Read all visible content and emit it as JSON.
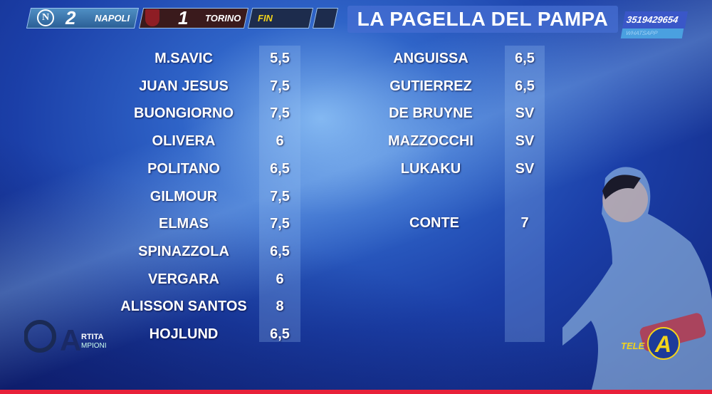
{
  "scoreboard": {
    "home_team": "NAPOLI",
    "home_score": "2",
    "away_team": "TORINO",
    "away_score": "1",
    "status": "FIN"
  },
  "title": "LA PAGELLA DEL PAMPA",
  "contact": {
    "phone": "3519429654",
    "label": "WHATSAPP"
  },
  "left_ratings": [
    {
      "name": "M.SAVIC",
      "score": "5,5"
    },
    {
      "name": "JUAN JESUS",
      "score": "7,5"
    },
    {
      "name": "BUONGIORNO",
      "score": "7,5"
    },
    {
      "name": "OLIVERA",
      "score": "6"
    },
    {
      "name": "POLITANO",
      "score": "6,5"
    },
    {
      "name": "GILMOUR",
      "score": "7,5"
    },
    {
      "name": "ELMAS",
      "score": "7,5"
    },
    {
      "name": "SPINAZZOLA",
      "score": "6,5"
    },
    {
      "name": "VERGARA",
      "score": "6"
    },
    {
      "name": "ALISSON SANTOS",
      "score": "8"
    },
    {
      "name": "HOJLUND",
      "score": "6,5"
    }
  ],
  "right_ratings": [
    {
      "name": "ANGUISSA",
      "score": "6,5"
    },
    {
      "name": "GUTIERREZ",
      "score": "6,5"
    },
    {
      "name": "DE BRUYNE",
      "score": "SV"
    },
    {
      "name": "MAZZOCCHI",
      "score": "SV"
    },
    {
      "name": "LUKAKU",
      "score": "SV"
    }
  ],
  "coach": {
    "name": "CONTE",
    "score": "7"
  },
  "logos": {
    "program": "La Partita dei Campioni",
    "channel": "TELE A"
  },
  "colors": {
    "accent_red": "#e8213a",
    "fin_yellow": "#f2d31b"
  }
}
